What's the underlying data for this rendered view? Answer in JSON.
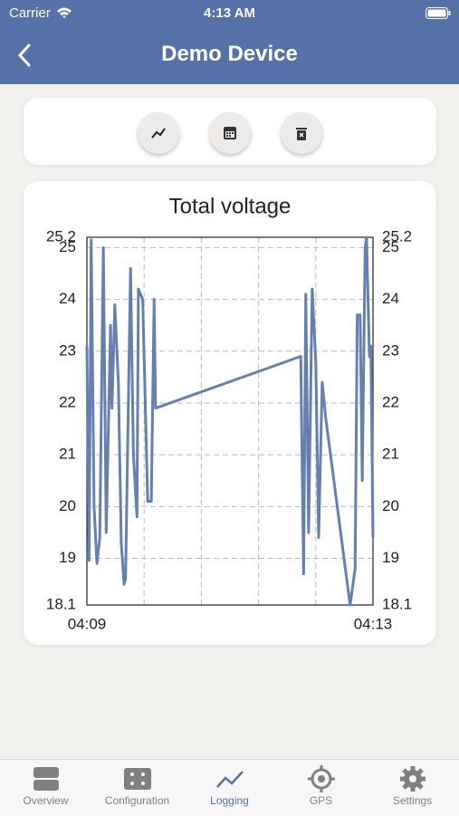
{
  "status_bar": {
    "carrier": "Carrier",
    "time": "4:13 AM"
  },
  "header": {
    "title": "Demo Device"
  },
  "chart_data": {
    "type": "line",
    "title": "Total voltage",
    "x": [
      249.0,
      249.03,
      249.06,
      249.1,
      249.14,
      249.18,
      249.23,
      249.27,
      249.33,
      249.35,
      249.39,
      249.44,
      249.48,
      249.52,
      249.54,
      249.61,
      249.65,
      249.7,
      249.72,
      249.78,
      249.85,
      249.9,
      249.94,
      249.96,
      251.99,
      252.03,
      252.06,
      252.1,
      252.15,
      252.2,
      252.24,
      252.29,
      252.34,
      252.68,
      252.75,
      252.78,
      252.82,
      252.85,
      252.89,
      252.91,
      252.95,
      252.97,
      253.0
    ],
    "series": [
      {
        "name": "Total voltage",
        "color": "#6580b0",
        "values": [
          23.1,
          18.96,
          25.15,
          20.0,
          18.9,
          19.4,
          25.0,
          19.5,
          23.5,
          21.9,
          23.9,
          22.4,
          19.3,
          18.5,
          18.6,
          24.6,
          21.0,
          19.8,
          24.2,
          24.0,
          20.1,
          20.1,
          24.0,
          21.9,
          22.9,
          18.7,
          24.1,
          19.5,
          24.2,
          22.8,
          19.4,
          22.4,
          21.7,
          18.1,
          18.8,
          23.7,
          23.7,
          20.5,
          25.0,
          25.2,
          22.9,
          23.1,
          19.4
        ]
      }
    ],
    "xlim": [
      249,
      253
    ],
    "xticks": [
      {
        "value": 249,
        "label": "04:09"
      },
      {
        "value": 253,
        "label": "04:13"
      }
    ],
    "xgrid": [
      249.8,
      250.6,
      251.4,
      252.2
    ],
    "ylim": [
      18.1,
      25.2
    ],
    "yticks": [
      18.1,
      19,
      20,
      21,
      22,
      23,
      24,
      25,
      25.2
    ],
    "grid": true
  },
  "tabs": [
    "Overview",
    "Configuration",
    "Logging",
    "GPS",
    "Settings"
  ]
}
